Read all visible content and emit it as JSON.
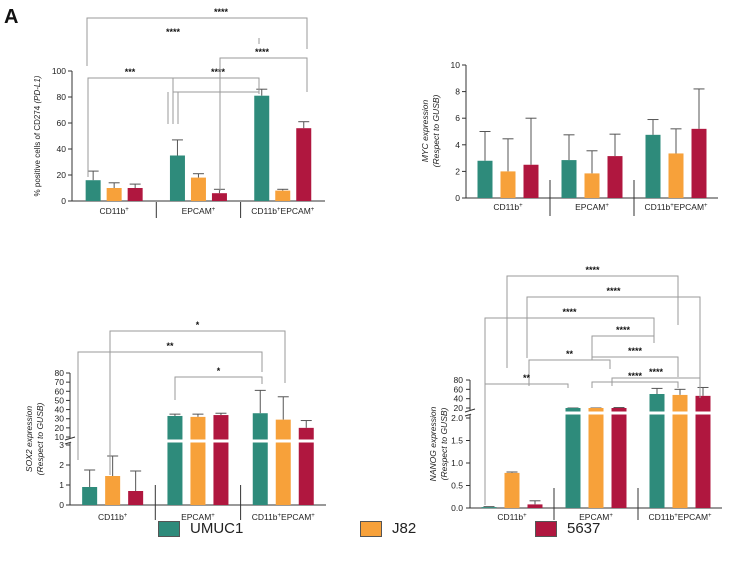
{
  "panel_letter": "A",
  "colors": {
    "UMUC1": "#2e8b7b",
    "J82": "#f7a13a",
    "5637": "#b0173f"
  },
  "legend": [
    {
      "name": "UMUC1",
      "color": "#2e8b7b"
    },
    {
      "name": "J82",
      "color": "#f7a13a"
    },
    {
      "name": "5637",
      "color": "#b0173f"
    }
  ],
  "chart_data": [
    {
      "id": "pdl1",
      "type": "bar",
      "ylabel_main": "% positive cells of CD274 ",
      "ylabel_italic": "(PD-L1)",
      "ylim": [
        0,
        100
      ],
      "yticks": [
        0,
        20,
        40,
        60,
        80,
        100
      ],
      "groups": [
        {
          "label": "CD11b",
          "sup": "+"
        },
        {
          "label": "EPCAM",
          "sup": "+"
        },
        {
          "label": "CD11b",
          "sup": "+",
          "label2": "EPCAM",
          "sup2": "+"
        }
      ],
      "series": [
        {
          "name": "UMUC1",
          "values": [
            16,
            35,
            81
          ],
          "errors": [
            7,
            12,
            5
          ]
        },
        {
          "name": "J82",
          "values": [
            10,
            18,
            8
          ],
          "errors": [
            4,
            3,
            1
          ]
        },
        {
          "name": "5637",
          "values": [
            10,
            6,
            56
          ],
          "errors": [
            3,
            3,
            5
          ]
        }
      ],
      "significance": [
        "***",
        "****",
        "****",
        "****",
        "****"
      ]
    },
    {
      "id": "myc",
      "type": "bar",
      "ylabel_line1": "MYC expression",
      "ylabel_line2": "(Respect to GUSB)",
      "ylim": [
        0,
        10
      ],
      "yticks": [
        0,
        2,
        4,
        6,
        8,
        10
      ],
      "groups": [
        {
          "label": "CD11b",
          "sup": "+"
        },
        {
          "label": "EPCAM",
          "sup": "+"
        },
        {
          "label": "CD11b",
          "sup": "+",
          "label2": "EPCAM",
          "sup2": "+"
        }
      ],
      "series": [
        {
          "name": "UMUC1",
          "values": [
            2.8,
            2.85,
            4.75
          ],
          "errors": [
            2.2,
            1.9,
            1.15
          ]
        },
        {
          "name": "J82",
          "values": [
            2.0,
            1.85,
            3.35
          ],
          "errors": [
            2.45,
            1.7,
            1.85
          ]
        },
        {
          "name": "5637",
          "values": [
            2.5,
            3.15,
            5.2
          ],
          "errors": [
            3.5,
            1.65,
            3.0
          ]
        }
      ]
    },
    {
      "id": "sox2",
      "type": "bar",
      "ylabel_line1": "SOX2 expression",
      "ylabel_line2": "(Respect to GUSB)",
      "yticks_lower": [
        0,
        1,
        2,
        3
      ],
      "yticks_upper": [
        10,
        20,
        30,
        40,
        50,
        60,
        70,
        80
      ],
      "groups": [
        {
          "label": "CD11b",
          "sup": "+"
        },
        {
          "label": "EPCAM",
          "sup": "+"
        },
        {
          "label": "CD11b",
          "sup": "+",
          "label2": "EPCAM",
          "sup2": "+"
        }
      ],
      "series": [
        {
          "name": "UMUC1",
          "values": [
            0.9,
            33,
            36
          ],
          "errors": [
            0.85,
            2,
            25
          ]
        },
        {
          "name": "J82",
          "values": [
            1.45,
            32,
            29
          ],
          "errors": [
            1.0,
            3,
            25
          ]
        },
        {
          "name": "5637",
          "values": [
            0.7,
            34,
            20
          ],
          "errors": [
            1.0,
            2,
            8
          ]
        }
      ],
      "significance": [
        "*",
        "**",
        "*"
      ]
    },
    {
      "id": "nanog",
      "type": "bar",
      "ylabel_line1": "NANOG expression",
      "ylabel_line2": "(Respect to GUSB)",
      "yticks_lower": [
        "0.0",
        "0.5",
        "1.0",
        "1.5",
        "2.0"
      ],
      "yticks_upper": [
        20,
        40,
        60,
        80
      ],
      "groups": [
        {
          "label": "CD11b",
          "sup": "+"
        },
        {
          "label": "EPCAM",
          "sup": "+"
        },
        {
          "label": "CD11b",
          "sup": "+",
          "label2": "EPCAM",
          "sup2": "+"
        }
      ],
      "series": [
        {
          "name": "UMUC1",
          "values": [
            0.02,
            18,
            50
          ],
          "errors": [
            0.01,
            1,
            12
          ]
        },
        {
          "name": "J82",
          "values": [
            0.78,
            14,
            48
          ],
          "errors": [
            0.02,
            2,
            12
          ]
        },
        {
          "name": "5637",
          "values": [
            0.08,
            18,
            46
          ],
          "errors": [
            0.08,
            3,
            18
          ]
        }
      ],
      "significance": [
        "****",
        "****",
        "****",
        "****",
        "****",
        "**",
        "****",
        "**",
        "****"
      ]
    }
  ]
}
